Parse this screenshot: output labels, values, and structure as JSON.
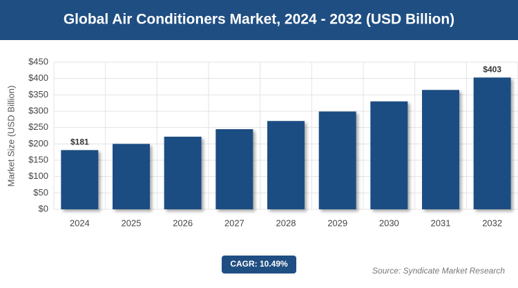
{
  "chart_data": {
    "type": "bar",
    "title": "Global Air Conditioners Market, 2024 - 2032 (USD Billion)",
    "y_label": "Market Size (USD Billion)",
    "categories": [
      "2024",
      "2025",
      "2026",
      "2027",
      "2028",
      "2029",
      "2030",
      "2031",
      "2032"
    ],
    "values": [
      181,
      200,
      222,
      245,
      270,
      299,
      330,
      365,
      403
    ],
    "value_labels": [
      "$181",
      null,
      null,
      null,
      null,
      null,
      null,
      null,
      "$403"
    ],
    "color": "#1f4e82",
    "ylim": [
      0,
      450
    ],
    "yticks": [
      {
        "value": 0,
        "label": "$0"
      },
      {
        "value": 50,
        "label": "$50"
      },
      {
        "value": 100,
        "label": "$100"
      },
      {
        "value": 150,
        "label": "$150"
      },
      {
        "value": 200,
        "label": "$200"
      },
      {
        "value": 250,
        "label": "$250"
      },
      {
        "value": 300,
        "label": "$300"
      },
      {
        "value": 350,
        "label": "$350"
      },
      {
        "value": 400,
        "label": "$400"
      },
      {
        "value": 450,
        "label": "$450"
      }
    ],
    "grid": true,
    "cagr": "CAGR: 10.49%",
    "source": "Source: Syndicate Market Research"
  }
}
